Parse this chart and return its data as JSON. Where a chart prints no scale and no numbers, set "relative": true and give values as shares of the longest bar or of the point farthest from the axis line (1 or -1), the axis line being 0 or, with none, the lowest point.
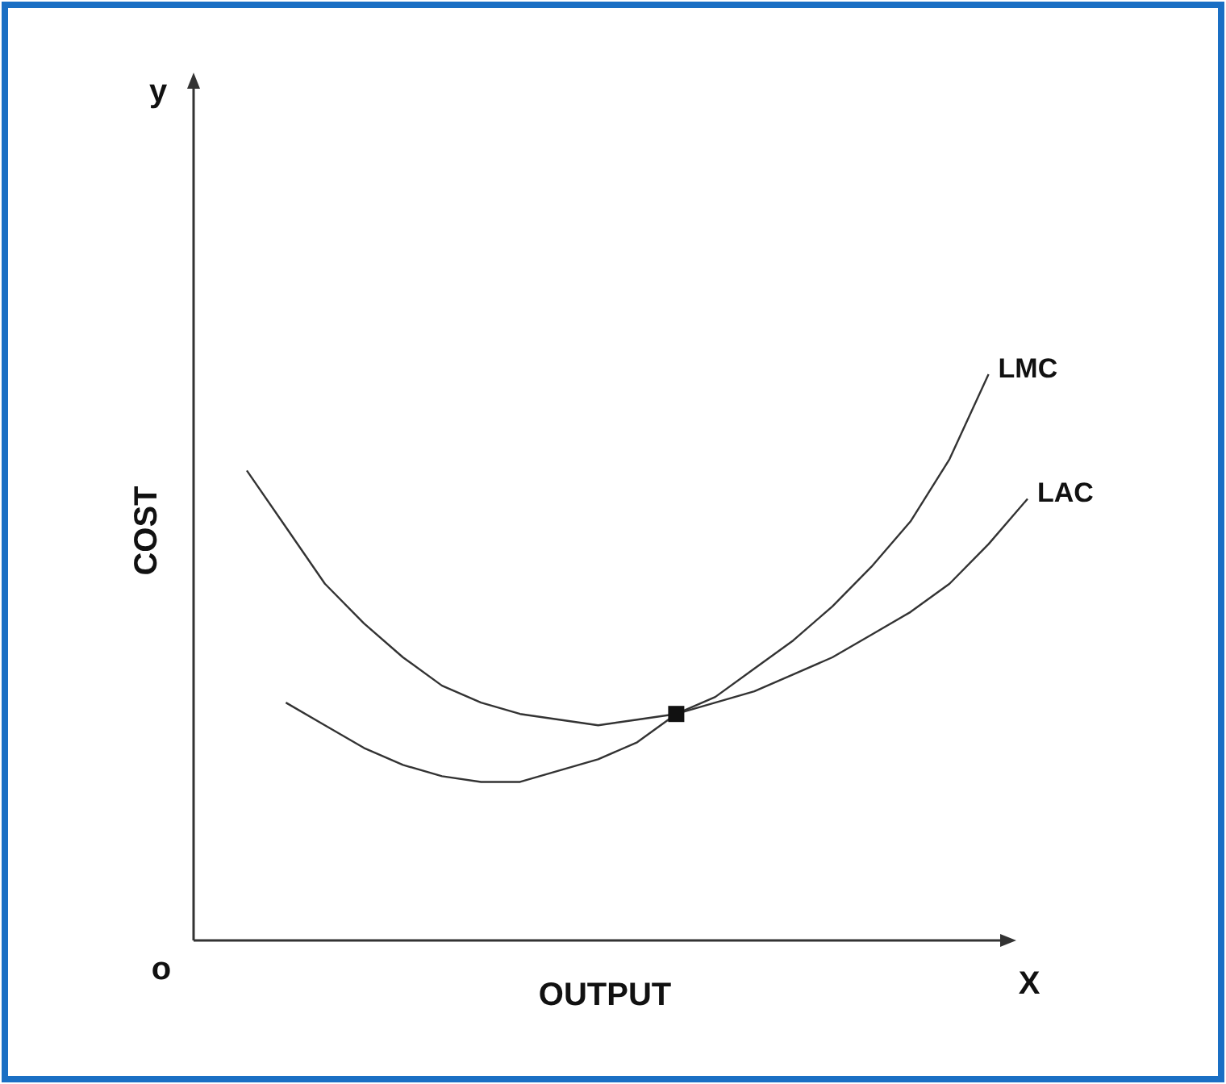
{
  "chart_data": {
    "type": "line",
    "relative": true,
    "xlabel": "OUTPUT",
    "ylabel": "COST",
    "annotations": [
      "y",
      "X",
      "o"
    ],
    "marker": "none",
    "line_style": "solid",
    "categories": [
      null,
      null,
      null,
      null,
      null,
      null,
      null,
      null,
      null,
      null,
      null,
      null,
      null,
      null,
      null,
      null,
      null,
      null,
      null,
      null,
      null
    ],
    "series": [
      {
        "name": "LMC",
        "color": "#333333",
        "values": [
          null,
          0.42,
          0.38,
          0.34,
          0.31,
          0.29,
          0.28,
          0.28,
          0.3,
          0.32,
          0.35,
          0.4,
          0.43,
          0.48,
          0.53,
          0.59,
          0.66,
          0.74,
          0.85,
          1.0,
          null
        ]
      },
      {
        "name": "LAC",
        "color": "#333333",
        "values": [
          0.83,
          0.73,
          0.63,
          0.56,
          0.5,
          0.45,
          0.42,
          0.4,
          0.39,
          0.38,
          0.39,
          0.4,
          0.42,
          0.44,
          0.47,
          0.5,
          0.54,
          0.58,
          0.63,
          0.7,
          0.78
        ]
      }
    ]
  }
}
